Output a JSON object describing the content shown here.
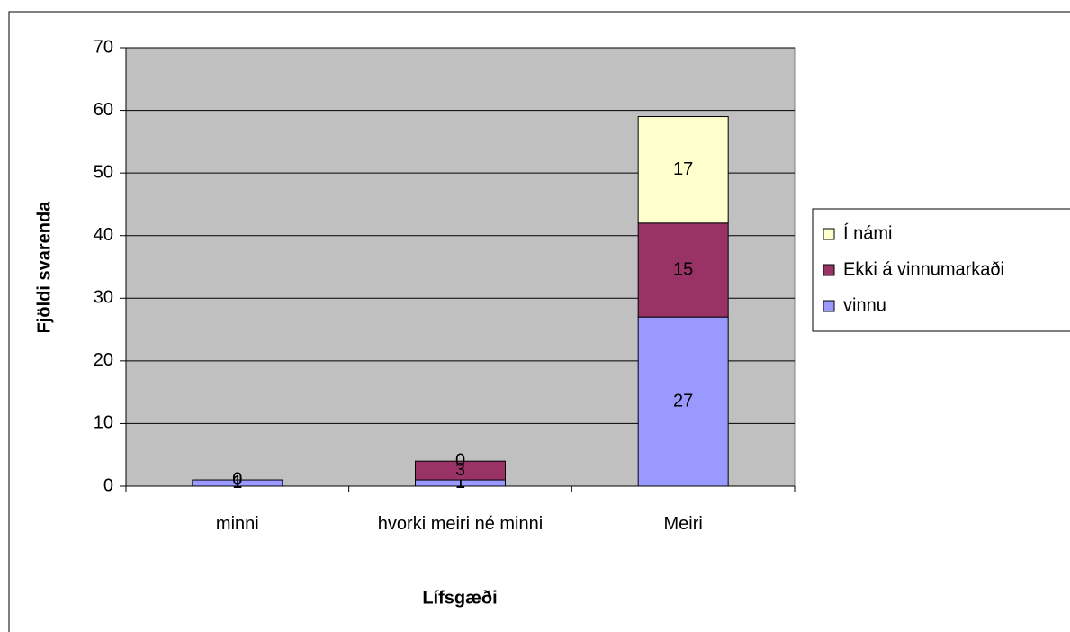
{
  "chart_data": {
    "type": "stacked_bar",
    "categories": [
      "minni",
      "hvorki meiri né minni",
      "Meiri"
    ],
    "series": [
      {
        "name": "vinnu",
        "color": "#9999ff",
        "values": [
          1,
          1,
          27
        ]
      },
      {
        "name": "Ekki á vinnumarkaði",
        "color": "#993366",
        "values": [
          0,
          3,
          15
        ]
      },
      {
        "name": "Í námi",
        "color": "#ffffcc",
        "values": [
          0,
          0,
          17
        ]
      }
    ],
    "ylabel": "Fjöldi svarenda",
    "xlabel": "Lífsgæði",
    "ylim": [
      0,
      70
    ],
    "yticks": [
      0,
      10,
      20,
      30,
      40,
      50,
      60,
      70
    ],
    "grid": true,
    "legend": "right",
    "plot_background": "#c0c0c0"
  }
}
